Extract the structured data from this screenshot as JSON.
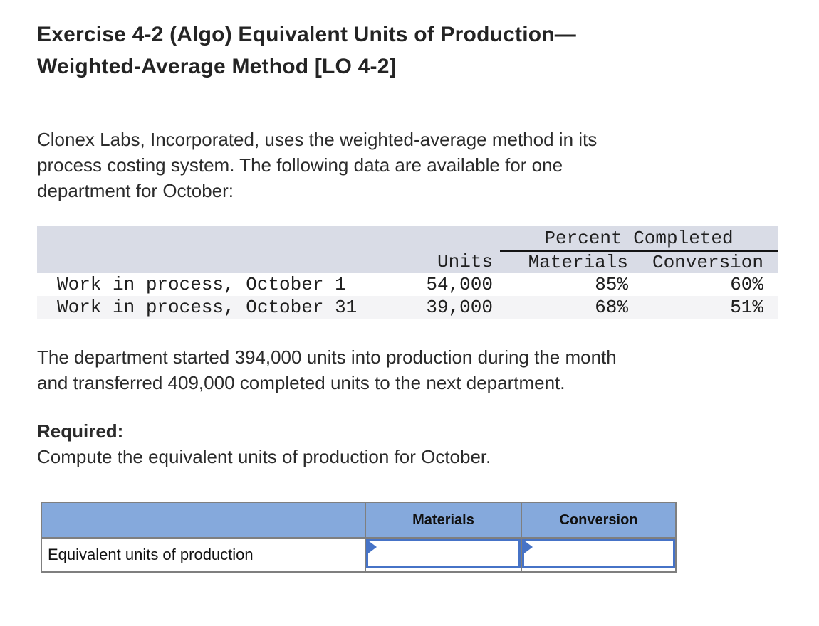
{
  "header": {
    "title_lines": [
      "Exercise 4-2 (Algo) Equivalent Units of Production—",
      "Weighted-Average Method [LO 4-2]"
    ]
  },
  "body": {
    "intro_lines": [
      "Clonex Labs, Incorporated, uses the weighted-average method in its",
      "process costing system. The following data are available for one",
      "department for October:"
    ],
    "facts_lines": [
      "The department started 394,000 units into production during the month",
      "and transferred 409,000 completed units to the next department."
    ],
    "required_label": "Required:",
    "instruction": "Compute the equivalent units of production for October."
  },
  "data_table": {
    "group_header": "Percent Completed",
    "columns": [
      "Units",
      "Materials",
      "Conversion"
    ],
    "rows": [
      {
        "label": "Work in process, October 1",
        "units": "54,000",
        "materials": "85%",
        "conversion": "60%"
      },
      {
        "label": "Work in process, October 31",
        "units": "39,000",
        "materials": "68%",
        "conversion": "51%"
      }
    ]
  },
  "answer_table": {
    "columns": [
      "Materials",
      "Conversion"
    ],
    "row_label": "Equivalent units of production",
    "values": {
      "materials": "",
      "conversion": ""
    }
  },
  "colors": {
    "data_table_header_bg": "#d9dce6",
    "data_table_alt_row_bg": "#f4f4f6",
    "answer_header_bg": "#85a9dc",
    "answer_input_border": "#4673c7",
    "table_border_gray": "#7f7f7f",
    "group_header_underline": "#141414"
  }
}
